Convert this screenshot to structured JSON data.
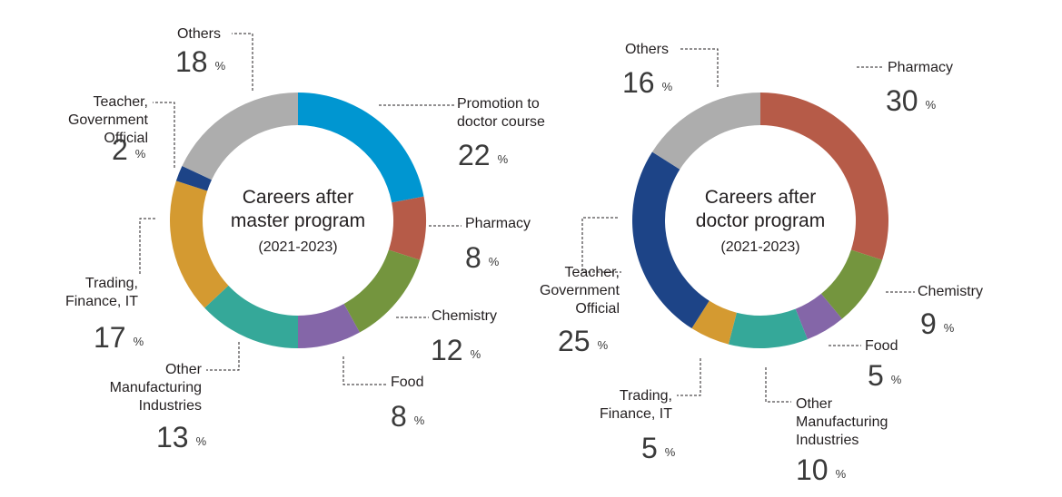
{
  "chart_data": [
    {
      "type": "pie",
      "title_lines": [
        "Careers after",
        "master program"
      ],
      "subtitle": "(2021-2023)",
      "unit": "%",
      "series": [
        {
          "label": "Promotion to doctor course",
          "label_lines": [
            "Promotion to",
            "doctor course"
          ],
          "value": 22,
          "color": "#0096d1"
        },
        {
          "label": "Pharmacy",
          "label_lines": [
            "Pharmacy"
          ],
          "value": 8,
          "color": "#b65b48"
        },
        {
          "label": "Chemistry",
          "label_lines": [
            "Chemistry"
          ],
          "value": 12,
          "color": "#74953e"
        },
        {
          "label": "Food",
          "label_lines": [
            "Food"
          ],
          "value": 8,
          "color": "#8466a8"
        },
        {
          "label": "Other Manufacturing Industries",
          "label_lines": [
            "Other",
            "Manufacturing",
            "Industries"
          ],
          "value": 13,
          "color": "#35a899"
        },
        {
          "label": "Trading, Finance, IT",
          "label_lines": [
            "Trading,",
            "Finance, IT"
          ],
          "value": 17,
          "color": "#d49a31"
        },
        {
          "label": "Teacher, Government Official",
          "label_lines": [
            "Teacher,",
            "Government",
            "Official"
          ],
          "value": 2,
          "color": "#1d4487"
        },
        {
          "label": "Others",
          "label_lines": [
            "Others"
          ],
          "value": 18,
          "color": "#adadad"
        }
      ]
    },
    {
      "type": "pie",
      "title_lines": [
        "Careers after",
        "doctor program"
      ],
      "subtitle": "(2021-2023)",
      "unit": "%",
      "series": [
        {
          "label": "Pharmacy",
          "label_lines": [
            "Pharmacy"
          ],
          "value": 30,
          "color": "#b65b48"
        },
        {
          "label": "Chemistry",
          "label_lines": [
            "Chemistry"
          ],
          "value": 9,
          "color": "#74953e"
        },
        {
          "label": "Food",
          "label_lines": [
            "Food"
          ],
          "value": 5,
          "color": "#8466a8"
        },
        {
          "label": "Other Manufacturing Industries",
          "label_lines": [
            "Other",
            "Manufacturing",
            "Industries"
          ],
          "value": 10,
          "color": "#35a899"
        },
        {
          "label": "Trading, Finance, IT",
          "label_lines": [
            "Trading,",
            "Finance, IT"
          ],
          "value": 5,
          "color": "#d49a31"
        },
        {
          "label": "Teacher, Government Official",
          "label_lines": [
            "Teacher,",
            "Government",
            "Official"
          ],
          "value": 25,
          "color": "#1d4487"
        },
        {
          "label": "Others",
          "label_lines": [
            "Others"
          ],
          "value": 16,
          "color": "#adadad"
        }
      ]
    }
  ]
}
